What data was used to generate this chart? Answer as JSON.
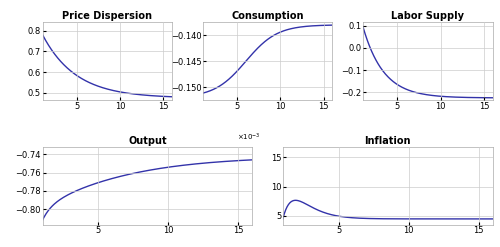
{
  "title_price": "Price Dispersion",
  "title_consumption": "Consumption",
  "title_labor": "Labor Supply",
  "title_output": "Output",
  "title_inflation": "Inflation",
  "x_ticks": [
    5,
    10,
    15
  ],
  "line_color": "#3333AA",
  "line_width": 1.0,
  "bg_color": "#ffffff",
  "grid_color": "#cccccc",
  "price_ylim": [
    0.465,
    0.84
  ],
  "price_yticks": [
    0.5,
    0.6,
    0.7,
    0.8
  ],
  "consumption_ylim": [
    -0.1525,
    -0.1375
  ],
  "consumption_yticks": [
    -0.15,
    -0.145,
    -0.14
  ],
  "labor_ylim": [
    -0.235,
    0.115
  ],
  "labor_yticks": [
    -0.2,
    -0.1,
    0.0,
    0.1
  ],
  "output_ylim": [
    -0.817,
    -0.732
  ],
  "output_yticks": [
    -0.8,
    -0.78,
    -0.76,
    -0.74
  ],
  "inflation_ylim": [
    3.5,
    16.8
  ],
  "inflation_yticks": [
    5,
    10,
    15
  ],
  "title_fontsize": 7.0,
  "tick_fontsize": 6.0,
  "spine_color": "#aaaaaa"
}
